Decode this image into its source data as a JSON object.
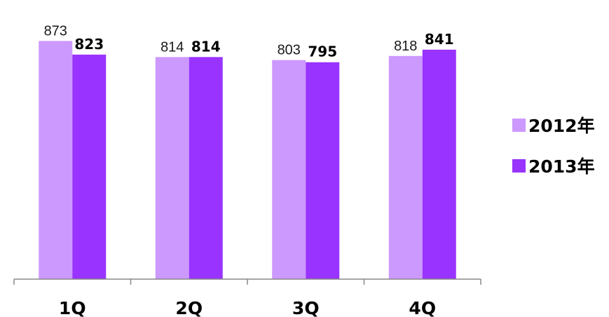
{
  "chart_data": {
    "type": "bar",
    "title": "",
    "xlabel": "",
    "ylabel": "",
    "categories": [
      "1Q",
      "2Q",
      "3Q",
      "4Q"
    ],
    "series": [
      {
        "name": "2012年",
        "color": "#cc99ff",
        "values": [
          873,
          814,
          803,
          818
        ]
      },
      {
        "name": "2013年",
        "color": "#9933ff",
        "values": [
          823,
          814,
          795,
          841
        ]
      }
    ],
    "ylim": [
      0,
      1000
    ],
    "grid": false,
    "legend_position": "right"
  }
}
